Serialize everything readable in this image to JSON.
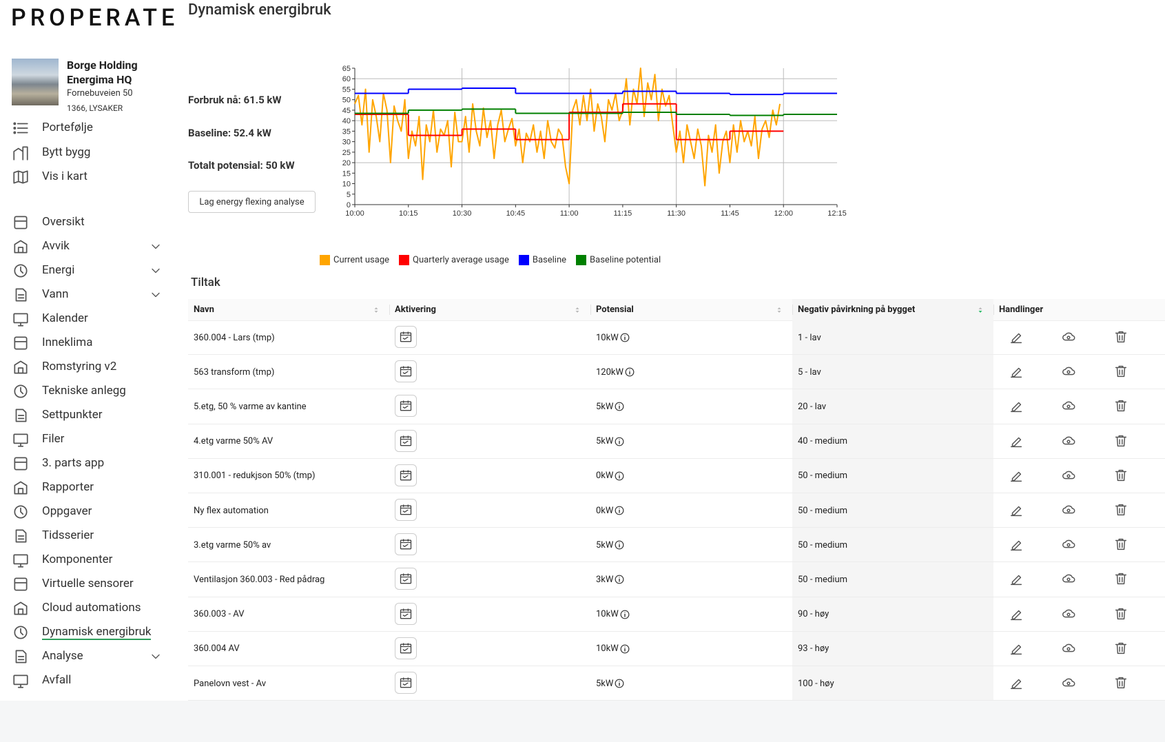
{
  "sidebar": {
    "logo": "PROPERATE",
    "building": {
      "name": "Borge Holding Energima HQ",
      "street": "Fornebuveien 50",
      "city": "1366, LYSAKER"
    },
    "nav_top": [
      "Portefølje",
      "Bytt bygg",
      "Vis i kart"
    ],
    "nav": [
      {
        "label": "Oversikt"
      },
      {
        "label": "Avvik",
        "expandable": true
      },
      {
        "label": "Energi",
        "expandable": true
      },
      {
        "label": "Vann",
        "expandable": true
      },
      {
        "label": "Kalender"
      },
      {
        "label": "Inneklima"
      },
      {
        "label": "Romstyring v2"
      },
      {
        "label": "Tekniske anlegg"
      },
      {
        "label": "Settpunkter"
      },
      {
        "label": "Filer"
      },
      {
        "label": "3. parts app"
      },
      {
        "label": "Rapporter"
      },
      {
        "label": "Oppgaver"
      },
      {
        "label": "Tidsserier"
      },
      {
        "label": "Komponenter"
      },
      {
        "label": "Virtuelle sensorer"
      },
      {
        "label": "Cloud automations"
      },
      {
        "label": "Dynamisk energibruk",
        "active": true
      },
      {
        "label": "Analyse",
        "expandable": true
      },
      {
        "label": "Avfall"
      }
    ]
  },
  "header": {
    "title": "Dynamisk energibruk"
  },
  "stats": [
    "Forbruk nå: 61.5 kW",
    "Baseline: 52.4 kW",
    "Totalt potensial: 50 kW"
  ],
  "button": "Lag energy flexing analyse",
  "chart": {
    "type": "line",
    "xlim": [
      "10:00",
      "12:15"
    ],
    "xticks": [
      "10:00",
      "10:15",
      "10:30",
      "10:45",
      "11:00",
      "11:15",
      "11:30",
      "11:45",
      "12:00",
      "12:15"
    ],
    "xgrid": [
      "10:30",
      "11:00",
      "11:30",
      "12:00"
    ],
    "ylim": [
      0,
      65
    ],
    "yticks": [
      0,
      5,
      10,
      15,
      20,
      25,
      30,
      35,
      40,
      45,
      50,
      55,
      60,
      65
    ],
    "ygrid": [
      20,
      40,
      60
    ],
    "series": [
      {
        "name": "Current usage",
        "color": "#ffa500",
        "x": [
          "10:00",
          "10:01",
          "10:02",
          "10:03",
          "10:04",
          "10:05",
          "10:06",
          "10:07",
          "10:08",
          "10:09",
          "10:10",
          "10:11",
          "10:12",
          "10:13",
          "10:14",
          "10:15",
          "10:16",
          "10:17",
          "10:18",
          "10:19",
          "10:20",
          "10:21",
          "10:22",
          "10:23",
          "10:24",
          "10:25",
          "10:26",
          "10:27",
          "10:28",
          "10:29",
          "10:30",
          "10:31",
          "10:32",
          "10:33",
          "10:34",
          "10:35",
          "10:36",
          "10:37",
          "10:38",
          "10:39",
          "10:40",
          "10:41",
          "10:42",
          "10:43",
          "10:44",
          "10:45",
          "10:46",
          "10:47",
          "10:48",
          "10:49",
          "10:50",
          "10:51",
          "10:52",
          "10:53",
          "10:54",
          "10:55",
          "10:56",
          "10:57",
          "10:58",
          "10:59",
          "11:00",
          "11:01",
          "11:02",
          "11:03",
          "11:04",
          "11:05",
          "11:06",
          "11:07",
          "11:08",
          "11:09",
          "11:10",
          "11:11",
          "11:12",
          "11:13",
          "11:14",
          "11:15",
          "11:16",
          "11:17",
          "11:18",
          "11:19",
          "11:20",
          "11:21",
          "11:22",
          "11:23",
          "11:24",
          "11:25",
          "11:26",
          "11:27",
          "11:28",
          "11:29",
          "11:30",
          "11:31",
          "11:32",
          "11:33",
          "11:34",
          "11:35",
          "11:36",
          "11:37",
          "11:38",
          "11:39",
          "11:40",
          "11:41",
          "11:42",
          "11:43",
          "11:44",
          "11:45",
          "11:46",
          "11:47",
          "11:48",
          "11:49",
          "11:50",
          "11:51",
          "11:52",
          "11:53",
          "11:54",
          "11:55",
          "11:56",
          "11:57",
          "11:58",
          "11:59"
        ],
        "values": [
          48,
          52,
          38,
          55,
          25,
          50,
          42,
          30,
          53,
          45,
          20,
          47,
          40,
          35,
          50,
          22,
          35,
          28,
          42,
          12,
          38,
          30,
          45,
          25,
          36,
          33,
          40,
          18,
          44,
          30,
          30,
          42,
          25,
          48,
          35,
          28,
          46,
          32,
          40,
          22,
          38,
          45,
          30,
          36,
          41,
          28,
          36,
          20,
          34,
          30,
          38,
          25,
          35,
          22,
          40,
          30,
          27,
          36,
          33,
          18,
          10,
          45,
          50,
          38,
          52,
          40,
          55,
          35,
          48,
          42,
          30,
          50,
          45,
          53,
          40,
          45,
          60,
          38,
          55,
          48,
          65,
          42,
          58,
          50,
          62,
          40,
          55,
          47,
          52,
          38,
          25,
          35,
          20,
          38,
          30,
          22,
          36,
          28,
          9,
          33,
          25,
          38,
          15,
          30,
          35,
          20,
          38,
          25,
          40,
          30,
          35,
          28,
          42,
          22,
          36,
          40,
          32,
          45,
          38,
          48
        ]
      },
      {
        "name": "Quarterly average usage",
        "color": "#ff0000",
        "step": true,
        "edges": [
          "10:00",
          "10:15",
          "10:30",
          "10:45",
          "11:00",
          "11:15",
          "11:30",
          "11:45",
          "12:00"
        ],
        "values": [
          43,
          33,
          36,
          31,
          44,
          48,
          31,
          35
        ]
      },
      {
        "name": "Baseline",
        "color": "#0000ff",
        "step": true,
        "edges": [
          "10:00",
          "10:15",
          "10:30",
          "10:45",
          "11:00",
          "11:15",
          "11:30",
          "11:45",
          "12:00",
          "12:15"
        ],
        "values": [
          53,
          55,
          55.5,
          53,
          53,
          54,
          53,
          52.5,
          53
        ]
      },
      {
        "name": "Baseline potential",
        "color": "#008000",
        "step": true,
        "edges": [
          "10:00",
          "10:15",
          "10:30",
          "10:45",
          "11:00",
          "11:15",
          "11:30",
          "11:45",
          "12:00",
          "12:15"
        ],
        "values": [
          43.5,
          45,
          45.5,
          43.5,
          43.5,
          44,
          43,
          42.5,
          43
        ]
      }
    ]
  },
  "table": {
    "title": "Tiltak",
    "columns": [
      "Navn",
      "Aktivering",
      "Potensial",
      "Negativ påvirkning på bygget",
      "Handlinger"
    ],
    "sortable": [
      true,
      true,
      true,
      true,
      false
    ],
    "sorted_by": 3,
    "rows": [
      [
        "360.004 - Lars (tmp)",
        "10kW",
        "1 - lav"
      ],
      [
        "563 transform (tmp)",
        "120kW",
        "5 - lav"
      ],
      [
        "5.etg, 50 % varme av kantine",
        "5kW",
        "20 - lav"
      ],
      [
        "4.etg varme 50% AV",
        "5kW",
        "40 - medium"
      ],
      [
        "310.001 - redukjson 50% (tmp)",
        "0kW",
        "50 - medium"
      ],
      [
        "Ny flex automation",
        "0kW",
        "50 - medium"
      ],
      [
        "3.etg varme 50% av",
        "5kW",
        "50 - medium"
      ],
      [
        "Ventilasjon 360.003 - Red pådrag",
        "3kW",
        "50 - medium"
      ],
      [
        "360.003 - AV",
        "10kW",
        "90 - høy"
      ],
      [
        "360.004 AV",
        "10kW",
        "93 - høy"
      ],
      [
        "Panelovn vest - Av",
        "5kW",
        "100 - høy"
      ]
    ]
  }
}
